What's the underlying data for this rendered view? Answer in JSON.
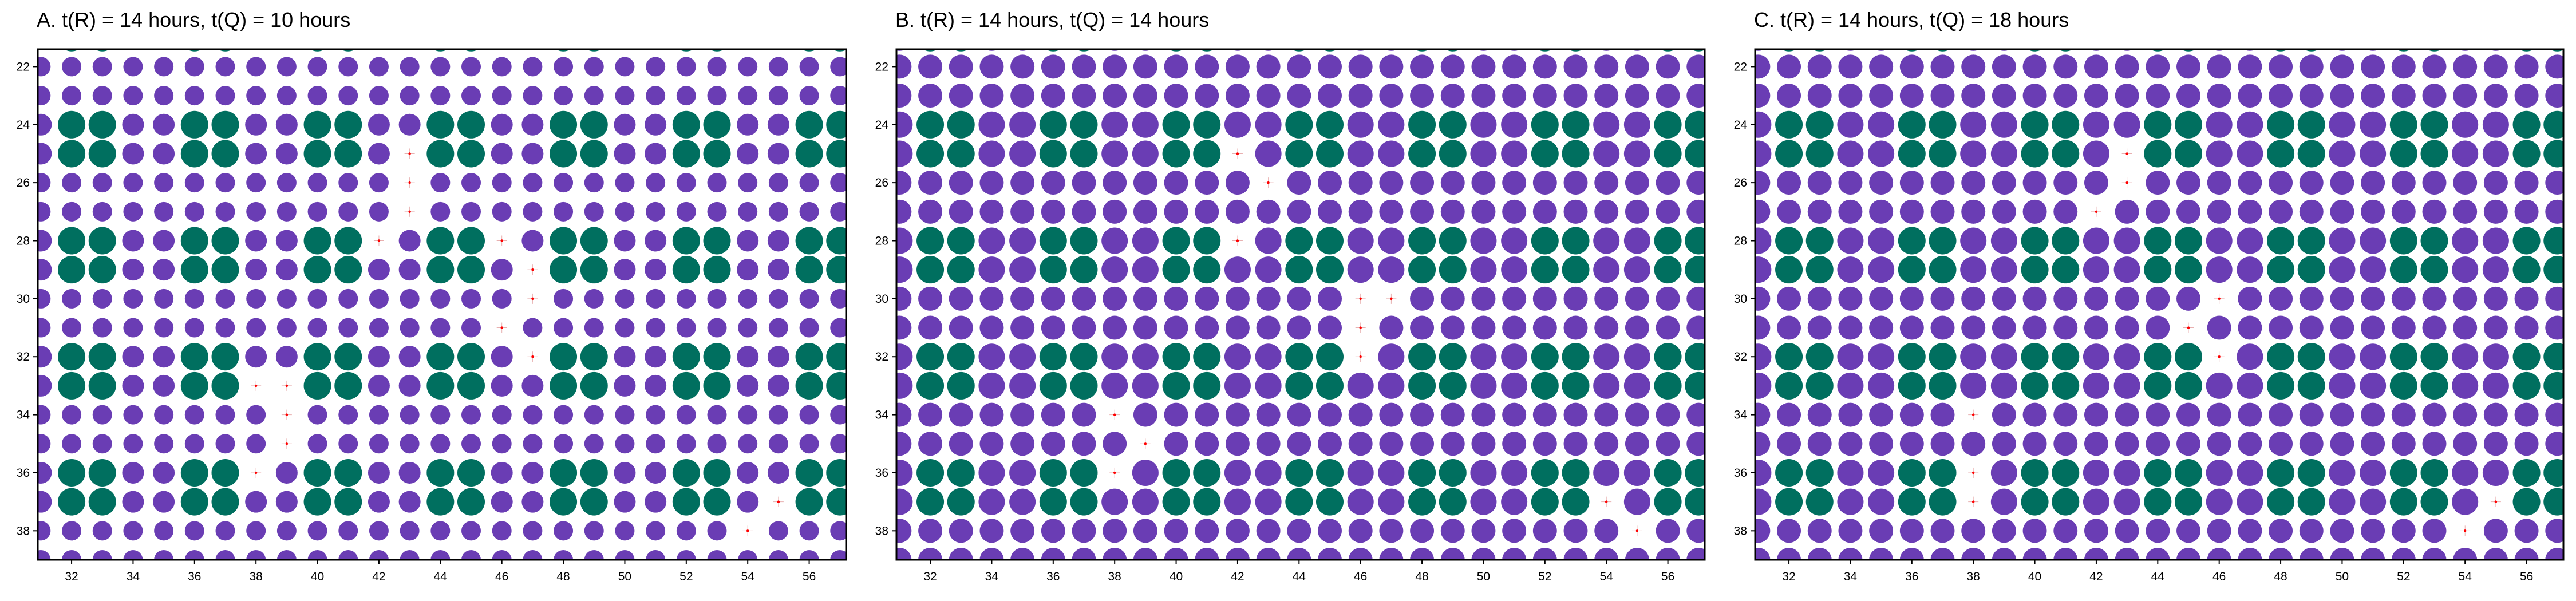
{
  "chart_data": [
    {
      "type": "scatter",
      "title": "A. t(R) = 14 hours, t(Q) = 10 hours",
      "xlabel": "",
      "ylabel": "",
      "xlim": [
        30.9,
        57.2
      ],
      "ylim": [
        39.0,
        21.4
      ],
      "xticks": [
        32,
        34,
        36,
        38,
        40,
        42,
        44,
        46,
        48,
        50,
        52,
        54,
        56
      ],
      "yticks": [
        22,
        24,
        26,
        28,
        30,
        32,
        34,
        36,
        38
      ],
      "y_axis_inverted": true,
      "grid": false,
      "layout": "square lattice, one marker per integer (x, y) site, x = 31..57, y = 21..39",
      "colors": {
        "Q": "#006f5f",
        "R": "#6a3db4",
        "empty_marker": "#ff0000",
        "frame": "#000000"
      },
      "green_lattice": {
        "x_period": 4,
        "x_offset": 32,
        "y_period": 4,
        "y_offset": 24,
        "block_width": 2,
        "block_height": 2
      },
      "marker_size": {
        "green": 1.2,
        "purple_on_green_rows": 0.95,
        "purple": 0.85
      },
      "empty_sites": [
        [
          43,
          25
        ],
        [
          43,
          26
        ],
        [
          43,
          27
        ],
        [
          42,
          28
        ],
        [
          46,
          28
        ],
        [
          47,
          29
        ],
        [
          47,
          30
        ],
        [
          46,
          31
        ],
        [
          47,
          32
        ],
        [
          38,
          33
        ],
        [
          39,
          33
        ],
        [
          39,
          34
        ],
        [
          39,
          35
        ],
        [
          38,
          36
        ],
        [
          55,
          37
        ],
        [
          54,
          38
        ]
      ]
    },
    {
      "type": "scatter",
      "title": "B. t(R) = 14 hours, t(Q) = 14 hours",
      "xlabel": "",
      "ylabel": "",
      "xlim": [
        30.9,
        57.2
      ],
      "ylim": [
        39.0,
        21.4
      ],
      "xticks": [
        32,
        34,
        36,
        38,
        40,
        42,
        44,
        46,
        48,
        50,
        52,
        54,
        56
      ],
      "yticks": [
        22,
        24,
        26,
        28,
        30,
        32,
        34,
        36,
        38
      ],
      "y_axis_inverted": true,
      "grid": false,
      "layout": "square lattice, one marker per integer (x, y) site, x = 31..57, y = 21..39",
      "colors": {
        "Q": "#006f5f",
        "R": "#6a3db4",
        "empty_marker": "#ff0000",
        "frame": "#000000"
      },
      "green_lattice": {
        "x_period": 4,
        "x_offset": 32,
        "y_period": 4,
        "y_offset": 24,
        "block_width": 2,
        "block_height": 2
      },
      "marker_size": {
        "green": 1.2,
        "purple_on_green_rows": 1.15,
        "purple": 1.05
      },
      "empty_sites": [
        [
          42,
          25
        ],
        [
          43,
          26
        ],
        [
          42,
          28
        ],
        [
          46,
          30
        ],
        [
          47,
          30
        ],
        [
          46,
          31
        ],
        [
          46,
          32
        ],
        [
          38,
          34
        ],
        [
          39,
          35
        ],
        [
          38,
          36
        ],
        [
          54,
          37
        ],
        [
          55,
          38
        ]
      ]
    },
    {
      "type": "scatter",
      "title": "C. t(R) = 14 hours, t(Q) = 18 hours",
      "xlabel": "",
      "ylabel": "",
      "xlim": [
        30.9,
        57.2
      ],
      "ylim": [
        39.0,
        21.4
      ],
      "xticks": [
        32,
        34,
        36,
        38,
        40,
        42,
        44,
        46,
        48,
        50,
        52,
        54,
        56
      ],
      "yticks": [
        22,
        24,
        26,
        28,
        30,
        32,
        34,
        36,
        38
      ],
      "y_axis_inverted": true,
      "grid": false,
      "layout": "square lattice, one marker per integer (x, y) site, x = 31..57, y = 21..39",
      "colors": {
        "Q": "#006f5f",
        "R": "#6a3db4",
        "empty_marker": "#ff0000",
        "frame": "#000000"
      },
      "green_lattice": {
        "x_period": 4,
        "x_offset": 32,
        "y_period": 4,
        "y_offset": 24,
        "block_width": 2,
        "block_height": 2
      },
      "marker_size": {
        "green": 1.2,
        "purple_on_green_rows": 1.15,
        "purple": 1.05
      },
      "empty_sites": [
        [
          43,
          25
        ],
        [
          43,
          26
        ],
        [
          42,
          27
        ],
        [
          46,
          30
        ],
        [
          45,
          31
        ],
        [
          46,
          32
        ],
        [
          38,
          34
        ],
        [
          38,
          36
        ],
        [
          38,
          37
        ],
        [
          55,
          37
        ],
        [
          54,
          38
        ]
      ]
    }
  ]
}
